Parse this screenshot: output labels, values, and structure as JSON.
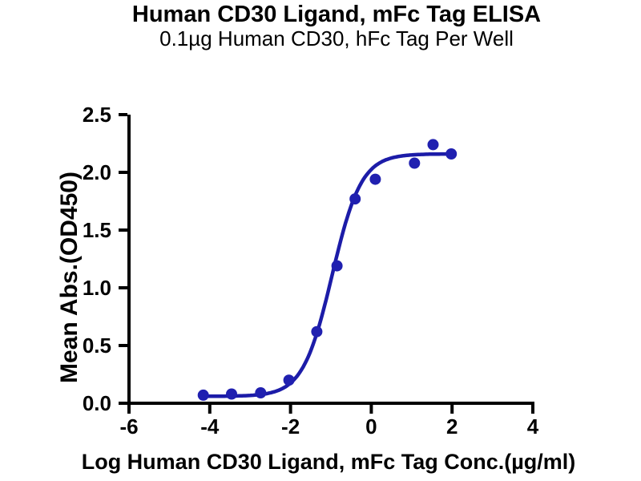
{
  "header": {
    "title": "Human CD30 Ligand, mFc Tag ELISA",
    "subtitle": "0.1µg Human CD30, hFc Tag Per Well"
  },
  "chart_data": {
    "type": "scatter",
    "curve_type": "4PL sigmoidal dose-response fit",
    "title": "Human CD30 Ligand, mFc Tag ELISA",
    "subtitle": "0.1µg Human CD30, hFc Tag Per Well",
    "xlabel": "Log Human CD30 Ligand, mFc Tag Conc.(µg/ml)",
    "ylabel": "Mean Abs.(OD450)",
    "xlim": [
      -6,
      4
    ],
    "ylim": [
      0,
      2.5
    ],
    "grid": false,
    "legend": "none",
    "x_ticks": [
      "-6",
      "-4",
      "-2",
      "0",
      "2",
      "4"
    ],
    "y_ticks": [
      "0.0",
      "0.5",
      "1.0",
      "1.5",
      "2.0",
      "2.5"
    ],
    "x": [
      -4.16,
      -3.46,
      -2.74,
      -2.04,
      -1.35,
      -0.85,
      -0.4,
      0.1,
      1.07,
      1.53,
      1.98
    ],
    "y": [
      0.07,
      0.08,
      0.09,
      0.2,
      0.62,
      1.19,
      1.77,
      1.94,
      2.08,
      2.24,
      2.16
    ],
    "fit_4pl": {
      "bottom": 0.06,
      "top": 2.16,
      "logEC50": -0.97,
      "hill": 1.2,
      "x_start": -4.16,
      "x_end": 1.98
    },
    "point_color": "#2020b0",
    "line_color": "#1c1ca8",
    "axis_color": "#000000",
    "text_color": "#000000"
  }
}
